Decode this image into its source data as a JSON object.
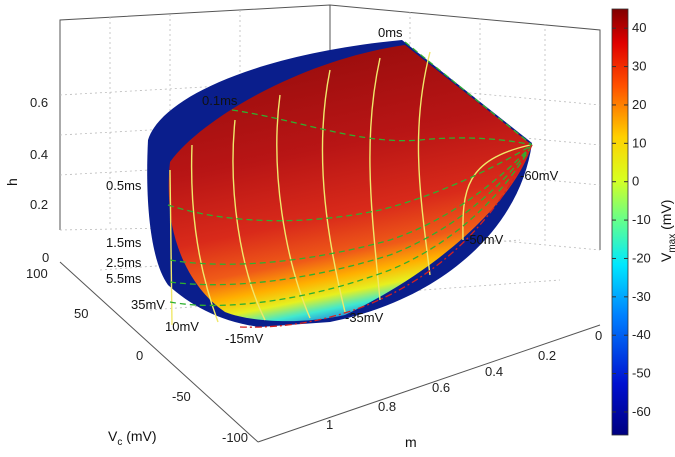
{
  "chart_data": {
    "type": "surface3d",
    "axes": {
      "x": {
        "label": "m",
        "ticks": [
          "0",
          "0.2",
          "0.4",
          "0.6",
          "0.8",
          "1"
        ]
      },
      "y": {
        "label_main": "V",
        "label_sub": "c",
        "label_unit": " (mV)",
        "ticks": [
          "100",
          "50",
          "0",
          "-50",
          "-100"
        ]
      },
      "z": {
        "label": "h",
        "ticks": [
          "0",
          "0.2",
          "0.4",
          "0.6"
        ]
      }
    },
    "colorbar": {
      "label_main": "V",
      "label_sub": "max",
      "label_unit": " (mV)",
      "ticks": [
        "40",
        "30",
        "20",
        "10",
        "0",
        "-10",
        "-20",
        "-30",
        "-40",
        "-50",
        "-60"
      ],
      "vmin": -66,
      "vmax": 45
    },
    "time_labels": [
      "0ms",
      "0.1ms",
      "0.5ms",
      "1.5ms",
      "2.5ms",
      "5.5ms"
    ],
    "voltage_labels": [
      "35mV",
      "10mV",
      "-15mV",
      "-35mV",
      "-50mV",
      "-60mV"
    ],
    "colors": {
      "blue_region": "#0a1e8c",
      "yellow_contour": "#f0e86a",
      "green_contour": "#2fb02f",
      "red_boundary": "#d42020"
    },
    "grid": true
  }
}
